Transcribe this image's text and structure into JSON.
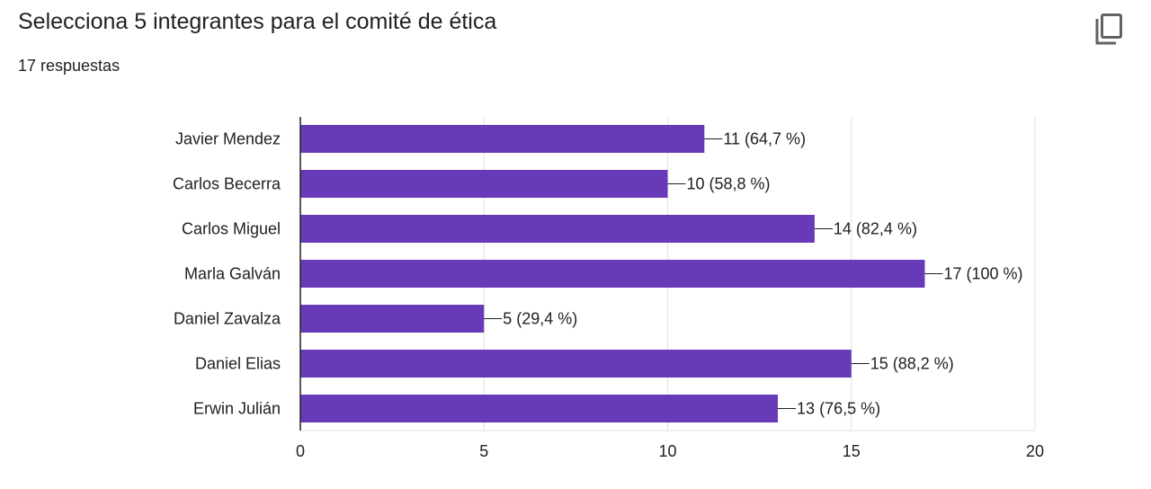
{
  "question": {
    "title": "Selecciona 5 integrantes para el comité de ética",
    "responses": "17 respuestas"
  },
  "toolbar": {
    "copy_icon": "copy-chart-icon"
  },
  "colors": {
    "bar": "#673ab7",
    "grid": "#e0e0e0",
    "axis": "#202124",
    "text": "#202124"
  },
  "chart_data": {
    "type": "bar",
    "orientation": "horizontal",
    "title": "",
    "xlabel": "",
    "ylabel": "",
    "categories": [
      "Javier Mendez",
      "Carlos Becerra",
      "Carlos Miguel",
      "Marla Galván",
      "Daniel Zavalza",
      "Daniel Elias",
      "Erwin Julián"
    ],
    "values": [
      11,
      10,
      14,
      17,
      5,
      15,
      13
    ],
    "data_labels": [
      "11 (64,7 %)",
      "10 (58,8 %)",
      "14 (82,4 %)",
      "17 (100 %)",
      "5 (29,4 %)",
      "15 (88,2 %)",
      "13 (76,5 %)"
    ],
    "xlim": [
      0,
      20
    ],
    "xticks": [
      0,
      5,
      10,
      15,
      20
    ],
    "xtick_labels": [
      "0",
      "5",
      "10",
      "15",
      "20"
    ],
    "grid": true,
    "legend": "none"
  }
}
